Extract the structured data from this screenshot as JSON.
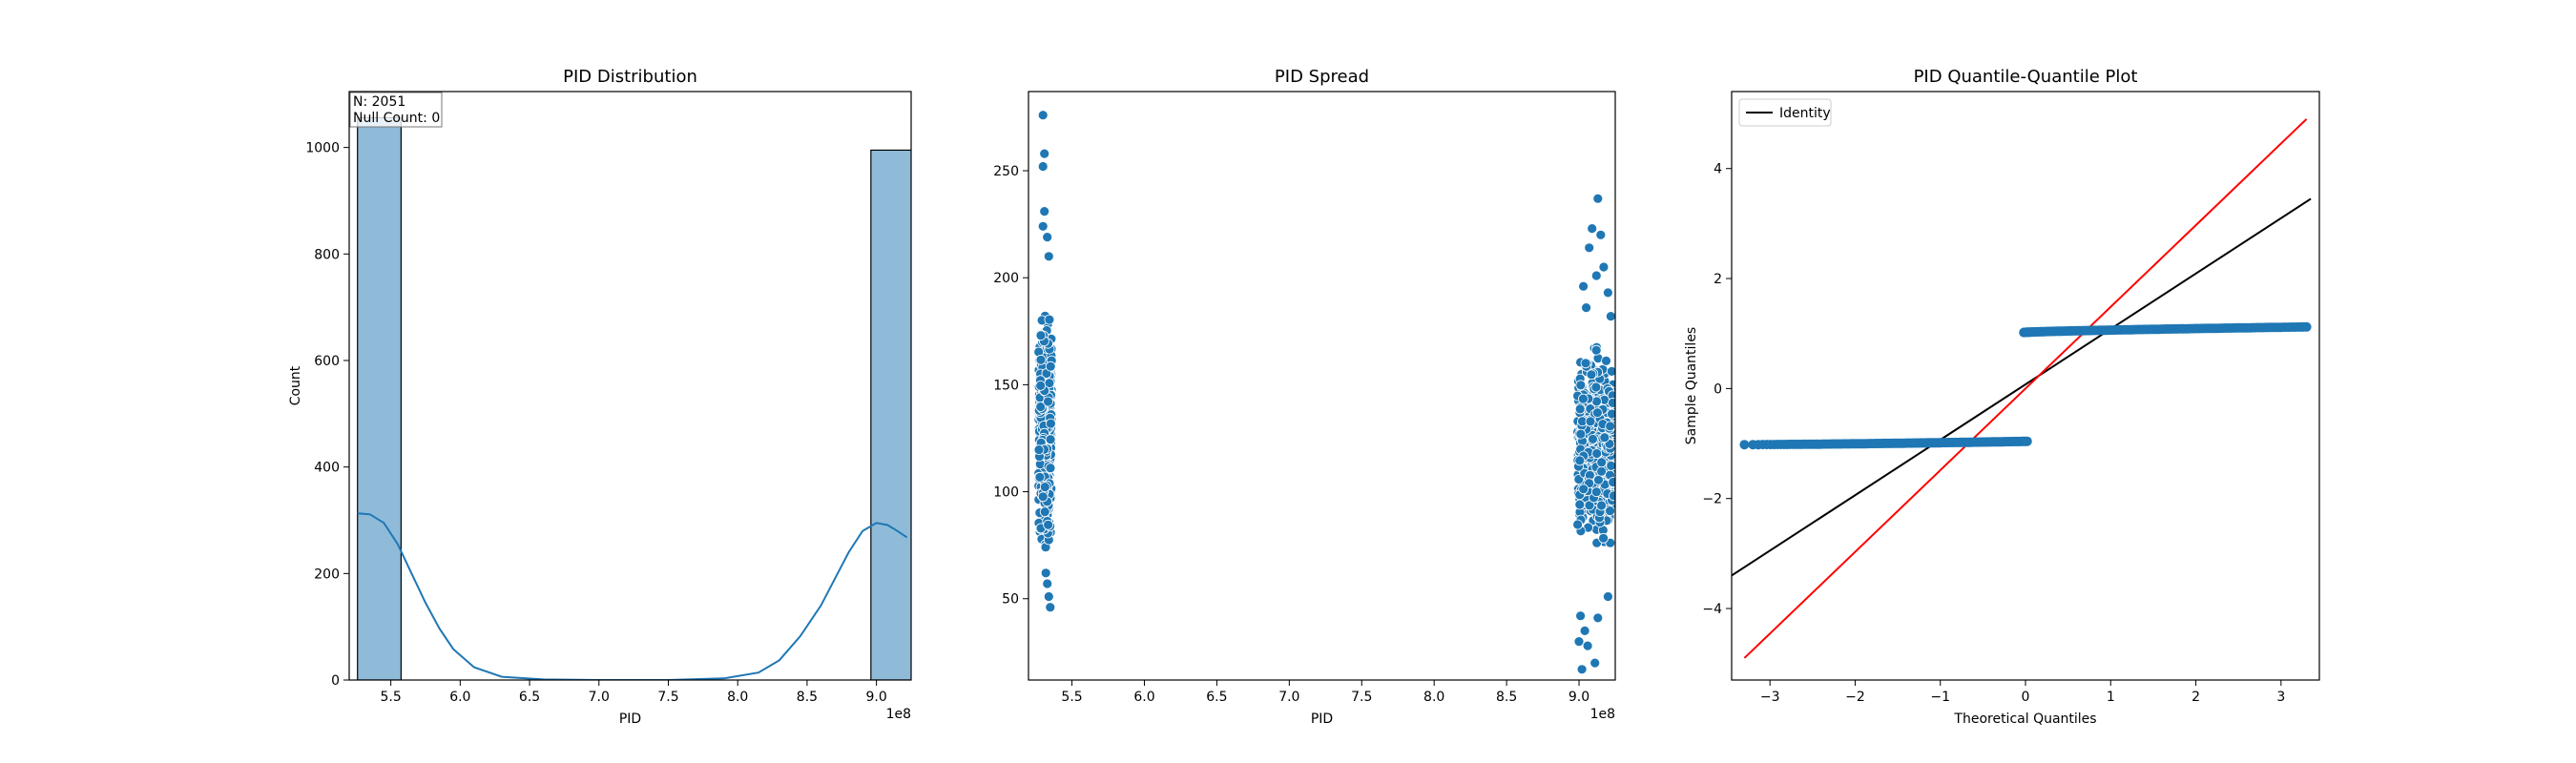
{
  "chart_data": [
    {
      "type": "bar",
      "title": "PID Distribution",
      "xlabel": "PID",
      "ylabel": "Count",
      "x_offset_label": "1e8",
      "xlim": [
        5.2,
        9.25
      ],
      "ylim": [
        0,
        1105
      ],
      "xticks": [
        5.5,
        6.0,
        6.5,
        7.0,
        7.5,
        8.0,
        8.5,
        9.0
      ],
      "xtick_labels": [
        "5.5",
        "6.0",
        "6.5",
        "7.0",
        "7.5",
        "8.0",
        "8.5",
        "9.0"
      ],
      "yticks": [
        0,
        200,
        400,
        600,
        800,
        1000
      ],
      "ytick_labels": [
        "0",
        "200",
        "400",
        "600",
        "800",
        "1000"
      ],
      "bins": [
        {
          "x0": 5.26,
          "x1": 5.574,
          "count": 1056
        },
        {
          "x0": 8.96,
          "x1": 9.274,
          "count": 995
        }
      ],
      "kde": {
        "x": [
          5.26,
          5.35,
          5.45,
          5.55,
          5.65,
          5.75,
          5.85,
          5.95,
          6.1,
          6.3,
          6.6,
          7.0,
          7.5,
          7.9,
          8.15,
          8.3,
          8.45,
          8.6,
          8.7,
          8.8,
          8.9,
          9.0,
          9.08,
          9.15,
          9.22
        ],
        "y": [
          313,
          311,
          295,
          255,
          200,
          145,
          97,
          58,
          24,
          6,
          1,
          0,
          0,
          3,
          14,
          37,
          82,
          140,
          190,
          240,
          280,
          295,
          291,
          280,
          268
        ]
      },
      "annotation": {
        "n": "N: 2051",
        "null_count": "Null Count: 0"
      },
      "bar_color": "#8fbbd9",
      "line_color": "#1f77b4"
    },
    {
      "type": "scatter",
      "title": "PID Spread",
      "xlabel": "PID",
      "ylabel": "",
      "x_offset_label": "1e8",
      "xlim": [
        5.2,
        9.25
      ],
      "ylim": [
        12,
        287
      ],
      "xticks": [
        5.5,
        6.0,
        6.5,
        7.0,
        7.5,
        8.0,
        8.5,
        9.0
      ],
      "xtick_labels": [
        "5.5",
        "6.0",
        "6.5",
        "7.0",
        "7.5",
        "8.0",
        "8.5",
        "9.0"
      ],
      "yticks": [
        50,
        100,
        150,
        200,
        250
      ],
      "ytick_labels": [
        "50",
        "100",
        "150",
        "200",
        "250"
      ],
      "clusters": [
        {
          "x_range": [
            5.27,
            5.36
          ],
          "y_range": [
            65,
            195
          ],
          "n": 420
        },
        {
          "x_range": [
            8.99,
            9.24
          ],
          "y_range": [
            60,
            175
          ],
          "n": 500
        }
      ],
      "outliers": [
        {
          "x": 5.3,
          "y": 276
        },
        {
          "x": 5.31,
          "y": 258
        },
        {
          "x": 5.3,
          "y": 252
        },
        {
          "x": 5.31,
          "y": 231
        },
        {
          "x": 5.3,
          "y": 224
        },
        {
          "x": 5.33,
          "y": 219
        },
        {
          "x": 5.34,
          "y": 210
        },
        {
          "x": 5.33,
          "y": 57
        },
        {
          "x": 5.34,
          "y": 51
        },
        {
          "x": 5.35,
          "y": 46
        },
        {
          "x": 5.32,
          "y": 62
        },
        {
          "x": 9.13,
          "y": 237
        },
        {
          "x": 9.09,
          "y": 223
        },
        {
          "x": 9.15,
          "y": 220
        },
        {
          "x": 9.07,
          "y": 214
        },
        {
          "x": 9.17,
          "y": 205
        },
        {
          "x": 9.12,
          "y": 201
        },
        {
          "x": 9.03,
          "y": 196
        },
        {
          "x": 9.2,
          "y": 193
        },
        {
          "x": 9.05,
          "y": 186
        },
        {
          "x": 9.22,
          "y": 182
        },
        {
          "x": 9.0,
          "y": 30
        },
        {
          "x": 9.02,
          "y": 17
        },
        {
          "x": 9.06,
          "y": 28
        },
        {
          "x": 9.11,
          "y": 20
        },
        {
          "x": 9.04,
          "y": 35
        },
        {
          "x": 9.01,
          "y": 42
        },
        {
          "x": 9.13,
          "y": 41
        },
        {
          "x": 9.2,
          "y": 51
        }
      ],
      "point_color": "#1f77b4"
    },
    {
      "type": "scatter",
      "title": "PID Quantile-Quantile Plot",
      "xlabel": "Theoretical Quantiles",
      "ylabel": "Sample Quantiles",
      "xlim": [
        -3.45,
        3.45
      ],
      "ylim": [
        -5.3,
        5.4
      ],
      "xticks": [
        -3,
        -2,
        -1,
        0,
        1,
        2,
        3
      ],
      "xtick_labels": [
        "−3",
        "−2",
        "−1",
        "0",
        "1",
        "2",
        "3"
      ],
      "yticks": [
        -4,
        -2,
        0,
        2,
        4
      ],
      "ytick_labels": [
        "−4",
        "−2",
        "0",
        "2",
        "4"
      ],
      "lower_branch": {
        "x_range": [
          -3.3,
          0.02
        ],
        "y_start": -1.02,
        "y_end": -0.96
      },
      "upper_branch": {
        "x_range": [
          -0.02,
          3.3
        ],
        "y_start": 1.02,
        "y_end": 1.12
      },
      "reference_line": {
        "x": [
          -3.45,
          3.35
        ],
        "y": [
          -3.4,
          3.45
        ],
        "color": "#000000"
      },
      "fit_line": {
        "x": [
          -3.3,
          3.3
        ],
        "y": [
          -4.9,
          4.9
        ],
        "color": "#ff0000"
      },
      "legend": {
        "label": "Identity",
        "position": "upper-left"
      },
      "point_color": "#1f77b4"
    }
  ]
}
